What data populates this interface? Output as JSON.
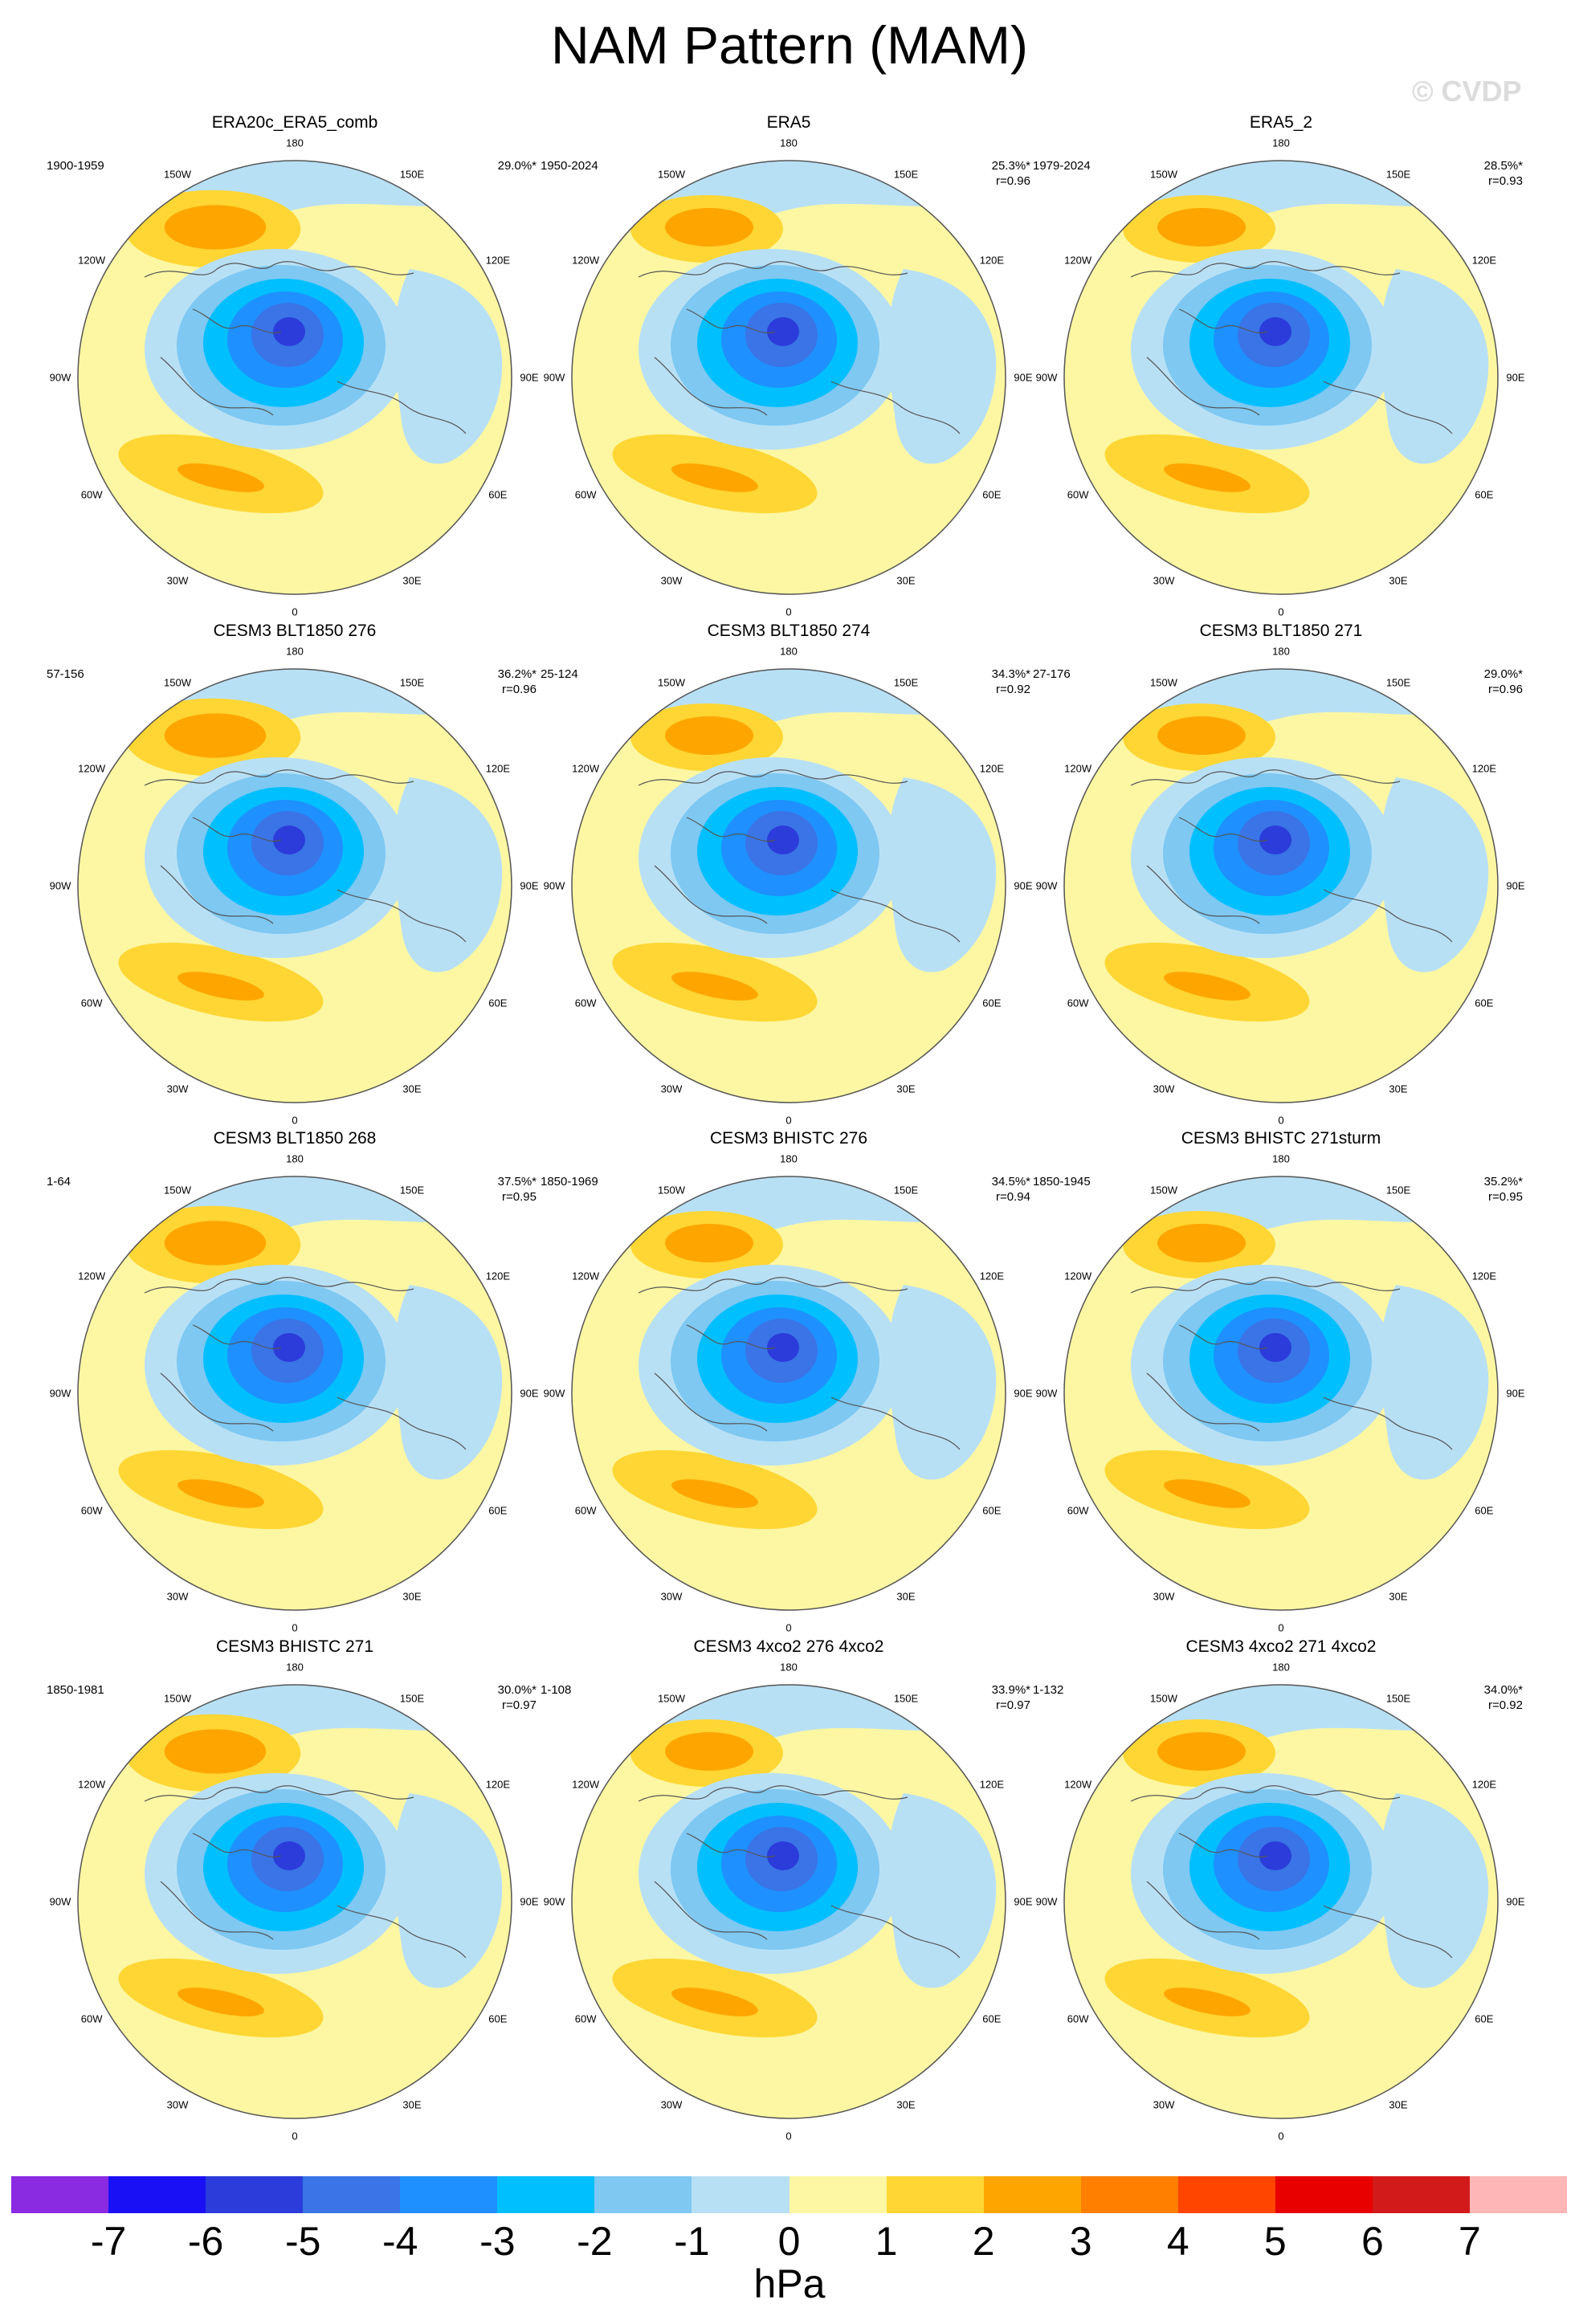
{
  "title": "NAM Pattern (MAM)",
  "watermark": "© CVDP",
  "lon_labels": [
    "180",
    "150E",
    "120E",
    "90E",
    "60E",
    "30E",
    "0",
    "30W",
    "60W",
    "90W",
    "120W",
    "150W"
  ],
  "panels": [
    {
      "title": "ERA20c_ERA5_comb",
      "period": "1900-1959",
      "pct": "29.0%*",
      "r": ""
    },
    {
      "title": "ERA5",
      "period": "1950-2024",
      "pct": "25.3%*",
      "r": "r=0.96"
    },
    {
      "title": "ERA5_2",
      "period": "1979-2024",
      "pct": "28.5%*",
      "r": "r=0.93"
    },
    {
      "title": "CESM3 BLT1850 276",
      "period": "57-156",
      "pct": "36.2%*",
      "r": "r=0.96"
    },
    {
      "title": "CESM3 BLT1850 274",
      "period": "25-124",
      "pct": "34.3%*",
      "r": "r=0.92"
    },
    {
      "title": "CESM3 BLT1850 271",
      "period": "27-176",
      "pct": "29.0%*",
      "r": "r=0.96"
    },
    {
      "title": "CESM3 BLT1850 268",
      "period": "1-64",
      "pct": "37.5%*",
      "r": "r=0.95"
    },
    {
      "title": "CESM3 BHISTC 276",
      "period": "1850-1969",
      "pct": "34.5%*",
      "r": "r=0.94"
    },
    {
      "title": "CESM3 BHISTC 271sturm",
      "period": "1850-1945",
      "pct": "35.2%*",
      "r": "r=0.95"
    },
    {
      "title": "CESM3 BHISTC 271",
      "period": "1850-1981",
      "pct": "30.0%*",
      "r": "r=0.97"
    },
    {
      "title": "CESM3 4xco2 276 4xco2",
      "period": "1-108",
      "pct": "33.9%*",
      "r": "r=0.97"
    },
    {
      "title": "CESM3 4xco2 271 4xco2",
      "period": "1-132",
      "pct": "34.0%*",
      "r": "r=0.92"
    }
  ],
  "colorbar": {
    "colors": [
      "#8a2be2",
      "#1a10f5",
      "#2b3cda",
      "#3a74e6",
      "#1e90ff",
      "#00bfff",
      "#7ec8f2",
      "#b8e0f5",
      "#fdf7a3",
      "#ffd633",
      "#ffa500",
      "#ff7f00",
      "#ff4500",
      "#e80000",
      "#d21a1a",
      "#ffb6b6"
    ],
    "ticks": [
      "-7",
      "-6",
      "-5",
      "-4",
      "-3",
      "-2",
      "-1",
      "0",
      "1",
      "2",
      "3",
      "4",
      "5",
      "6",
      "7"
    ],
    "units": "hPa"
  }
}
